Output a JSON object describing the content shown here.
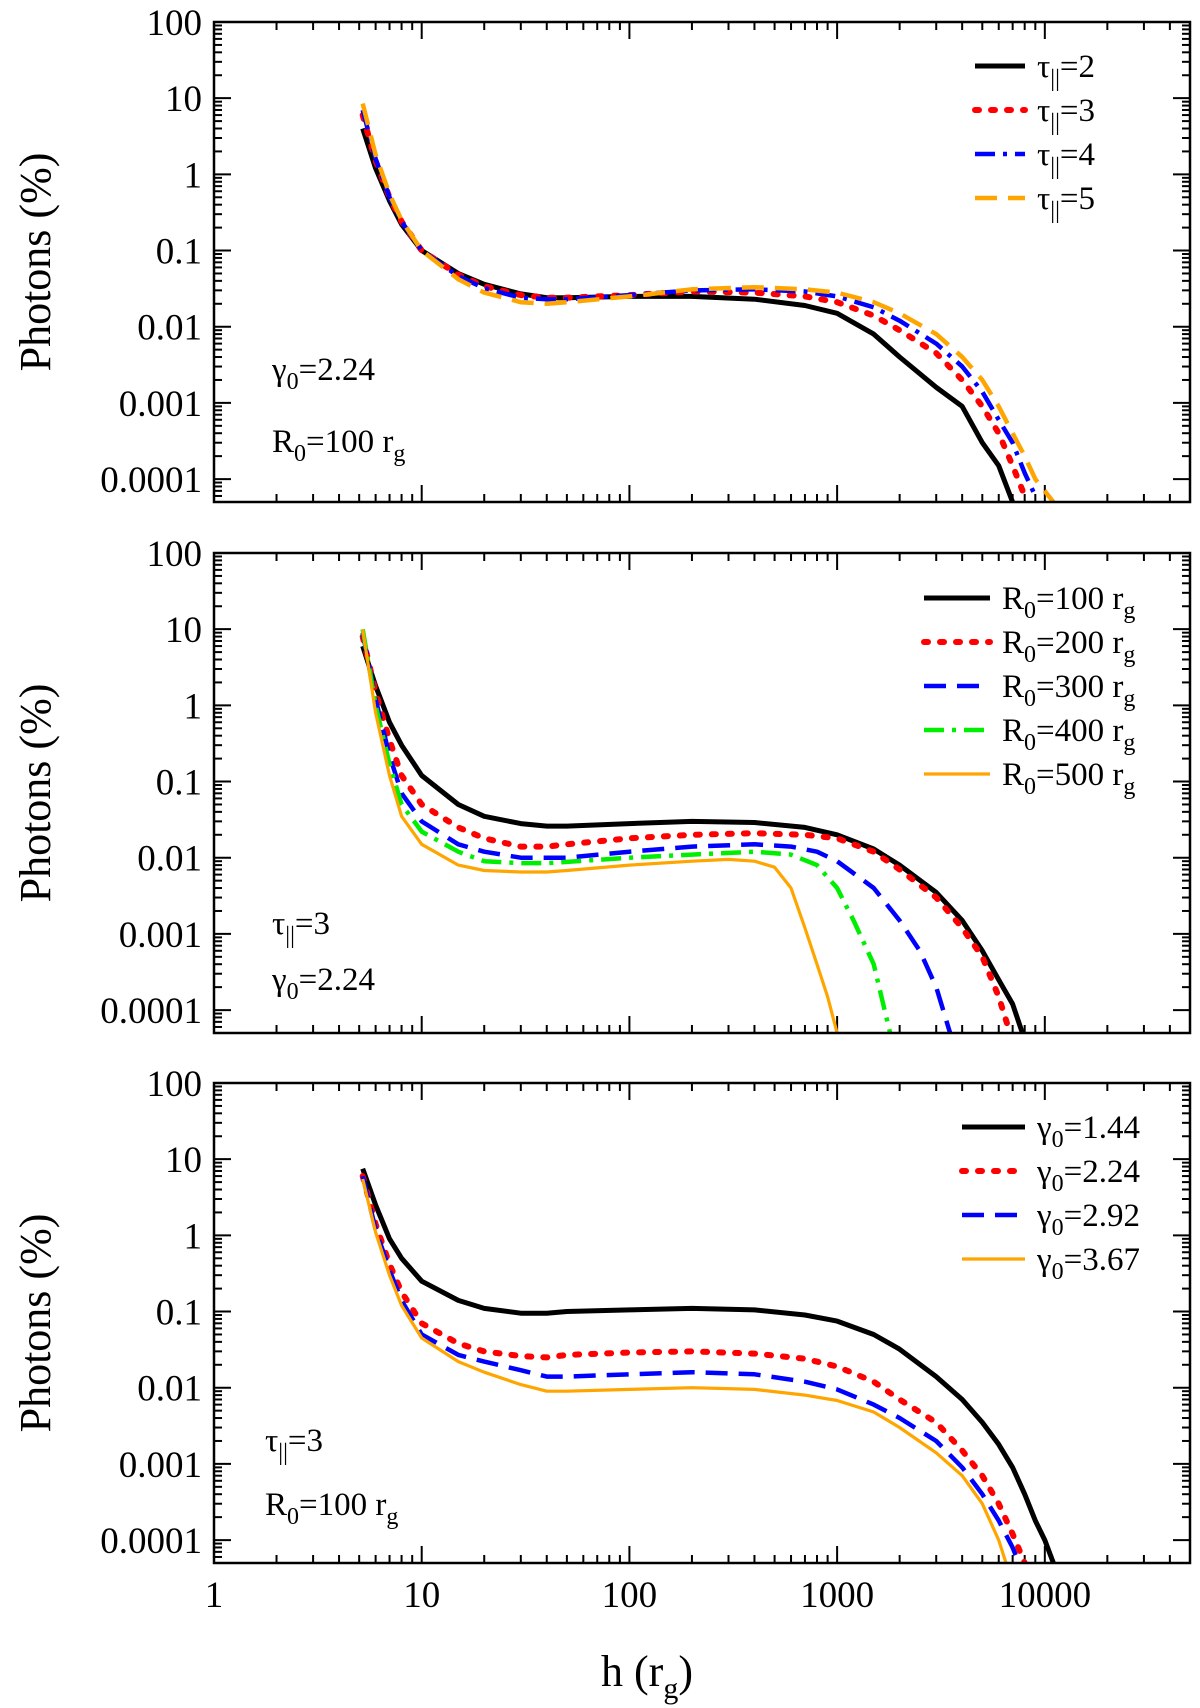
{
  "chart_data": [
    {
      "type": "line",
      "scale": "log-log",
      "xlabel": "h (r_g)",
      "ylabel": "Photons (%)",
      "xlim": [
        1,
        50000
      ],
      "ylim": [
        5e-05,
        100
      ],
      "x_ticks": [
        "1",
        "10",
        "100",
        "1000",
        "10000"
      ],
      "y_ticks": [
        "100",
        "10",
        "1",
        "0.1",
        "0.01",
        "0.001",
        "0.0001"
      ],
      "annotations": [
        "γ0=2.24",
        "R0=100 rg"
      ],
      "series": [
        {
          "name": "τ||=2",
          "color": "#000000",
          "style": "solid",
          "x": [
            5.2,
            6,
            7,
            8,
            10,
            15,
            20,
            30,
            40,
            50,
            100,
            200,
            400,
            700,
            1000,
            1500,
            2000,
            3000,
            4000,
            5000,
            6000,
            7000
          ],
          "y": [
            4,
            1.2,
            0.45,
            0.22,
            0.1,
            0.05,
            0.036,
            0.027,
            0.024,
            0.024,
            0.025,
            0.025,
            0.023,
            0.019,
            0.015,
            0.008,
            0.004,
            0.0016,
            0.0009,
            0.0003,
            0.00015,
            5e-05
          ]
        },
        {
          "name": "τ||=3",
          "color": "#ff0000",
          "style": "dotted",
          "x": [
            5.2,
            6,
            7,
            8,
            10,
            15,
            20,
            30,
            40,
            50,
            100,
            200,
            400,
            700,
            1000,
            1500,
            2000,
            3000,
            4000,
            5000,
            6000,
            7000,
            8000
          ],
          "y": [
            6,
            1.5,
            0.5,
            0.24,
            0.1,
            0.048,
            0.034,
            0.026,
            0.024,
            0.024,
            0.026,
            0.029,
            0.028,
            0.025,
            0.021,
            0.014,
            0.009,
            0.0045,
            0.002,
            0.0009,
            0.0004,
            0.00015,
            6e-05
          ]
        },
        {
          "name": "τ||=4",
          "color": "#0000ff",
          "style": "dash-dot",
          "x": [
            5.2,
            6,
            7,
            8,
            10,
            15,
            20,
            30,
            40,
            50,
            100,
            200,
            400,
            700,
            1000,
            1500,
            2000,
            3000,
            4000,
            5000,
            6000,
            7000,
            8000,
            9000
          ],
          "y": [
            7,
            1.6,
            0.5,
            0.24,
            0.1,
            0.046,
            0.032,
            0.024,
            0.023,
            0.023,
            0.026,
            0.03,
            0.031,
            0.029,
            0.025,
            0.018,
            0.012,
            0.006,
            0.003,
            0.0014,
            0.0006,
            0.0003,
            0.00012,
            6e-05
          ]
        },
        {
          "name": "τ||=5",
          "color": "#ffa500",
          "style": "dashed",
          "x": [
            5.2,
            6,
            7,
            8,
            10,
            15,
            20,
            30,
            40,
            50,
            100,
            200,
            400,
            700,
            1000,
            1500,
            2000,
            3000,
            4000,
            5000,
            6000,
            7000,
            8000,
            9000,
            11000
          ],
          "y": [
            8.5,
            1.8,
            0.55,
            0.25,
            0.1,
            0.042,
            0.028,
            0.021,
            0.02,
            0.021,
            0.025,
            0.031,
            0.033,
            0.031,
            0.028,
            0.021,
            0.015,
            0.008,
            0.004,
            0.002,
            0.0009,
            0.0004,
            0.0002,
            0.0001,
            5e-05
          ]
        }
      ]
    },
    {
      "type": "line",
      "scale": "log-log",
      "xlabel": "h (r_g)",
      "ylabel": "Photons (%)",
      "xlim": [
        1,
        50000
      ],
      "ylim": [
        5e-05,
        100
      ],
      "x_ticks": [
        "1",
        "10",
        "100",
        "1000",
        "10000"
      ],
      "y_ticks": [
        "100",
        "10",
        "1",
        "0.1",
        "0.01",
        "0.001",
        "0.0001"
      ],
      "annotations": [
        "τ||=3",
        "γ0=2.24"
      ],
      "series": [
        {
          "name": "R0=100 rg",
          "color": "#000000",
          "style": "solid",
          "x": [
            5.2,
            6,
            7,
            8,
            10,
            15,
            20,
            30,
            40,
            50,
            100,
            200,
            400,
            700,
            1000,
            1500,
            2000,
            3000,
            4000,
            5000,
            6000,
            7000,
            7800
          ],
          "y": [
            6,
            1.8,
            0.6,
            0.3,
            0.12,
            0.05,
            0.035,
            0.028,
            0.026,
            0.026,
            0.028,
            0.03,
            0.029,
            0.025,
            0.02,
            0.013,
            0.008,
            0.0035,
            0.0015,
            0.0006,
            0.00025,
            0.00012,
            5e-05
          ]
        },
        {
          "name": "R0=200 rg",
          "color": "#ff0000",
          "style": "dotted",
          "x": [
            5.2,
            6,
            7,
            8,
            10,
            15,
            20,
            30,
            40,
            50,
            100,
            200,
            400,
            700,
            1000,
            1500,
            2000,
            3000,
            4000,
            5000,
            6000,
            6800
          ],
          "y": [
            8,
            1.5,
            0.35,
            0.12,
            0.05,
            0.025,
            0.018,
            0.014,
            0.014,
            0.015,
            0.018,
            0.02,
            0.021,
            0.02,
            0.018,
            0.012,
            0.007,
            0.003,
            0.0012,
            0.0005,
            0.00015,
            5e-05
          ]
        },
        {
          "name": "R0=300 rg",
          "color": "#0000ff",
          "style": "dashed",
          "x": [
            5.2,
            6,
            7,
            8,
            10,
            15,
            20,
            30,
            40,
            50,
            100,
            200,
            400,
            600,
            800,
            1000,
            1500,
            2000,
            2500,
            3000,
            3500
          ],
          "y": [
            9,
            1.2,
            0.22,
            0.07,
            0.03,
            0.015,
            0.012,
            0.01,
            0.01,
            0.01,
            0.012,
            0.014,
            0.015,
            0.014,
            0.012,
            0.009,
            0.004,
            0.0015,
            0.0006,
            0.0002,
            5e-05
          ]
        },
        {
          "name": "R0=400 rg",
          "color": "#00ee00",
          "style": "dash-dot",
          "x": [
            5.2,
            6,
            7,
            8,
            10,
            15,
            20,
            30,
            40,
            50,
            100,
            200,
            400,
            600,
            800,
            1000,
            1200,
            1500,
            1800
          ],
          "y": [
            10,
            1,
            0.17,
            0.05,
            0.022,
            0.012,
            0.009,
            0.0085,
            0.0085,
            0.0088,
            0.01,
            0.011,
            0.012,
            0.011,
            0.008,
            0.004,
            0.0015,
            0.0004,
            5e-05
          ]
        },
        {
          "name": "R0=500 rg",
          "color": "#ffa500",
          "style": "solid-thin",
          "x": [
            5.2,
            6,
            7,
            8,
            10,
            15,
            20,
            30,
            40,
            50,
            100,
            200,
            300,
            400,
            500,
            600,
            700,
            800,
            900,
            1000
          ],
          "y": [
            10,
            0.8,
            0.12,
            0.035,
            0.015,
            0.008,
            0.0068,
            0.0065,
            0.0065,
            0.0068,
            0.008,
            0.009,
            0.0095,
            0.009,
            0.0075,
            0.004,
            0.0012,
            0.0004,
            0.00015,
            5e-05
          ]
        }
      ]
    },
    {
      "type": "line",
      "scale": "log-log",
      "xlabel": "h (r_g)",
      "ylabel": "Photons (%)",
      "xlim": [
        1,
        50000
      ],
      "ylim": [
        5e-05,
        100
      ],
      "x_ticks": [
        "1",
        "10",
        "100",
        "1000",
        "10000"
      ],
      "y_ticks": [
        "100",
        "10",
        "1",
        "0.1",
        "0.01",
        "0.001",
        "0.0001"
      ],
      "annotations": [
        "τ||=3",
        "R0=100 rg"
      ],
      "series": [
        {
          "name": "γ0=1.44",
          "color": "#000000",
          "style": "solid",
          "x": [
            5.2,
            6,
            7,
            8,
            10,
            15,
            20,
            30,
            40,
            50,
            100,
            200,
            400,
            700,
            1000,
            1500,
            2000,
            3000,
            4000,
            5000,
            6000,
            7000,
            8000,
            9000,
            10000,
            11000
          ],
          "y": [
            7.5,
            2.5,
            0.9,
            0.5,
            0.25,
            0.14,
            0.11,
            0.095,
            0.095,
            0.1,
            0.105,
            0.11,
            0.105,
            0.09,
            0.075,
            0.05,
            0.032,
            0.014,
            0.007,
            0.0035,
            0.0018,
            0.0009,
            0.0004,
            0.00018,
            0.0001,
            5e-05
          ]
        },
        {
          "name": "γ0=2.24",
          "color": "#ff0000",
          "style": "dotted",
          "x": [
            5.2,
            6,
            7,
            8,
            10,
            15,
            20,
            30,
            40,
            50,
            100,
            200,
            400,
            700,
            1000,
            1500,
            2000,
            3000,
            4000,
            5000,
            6000,
            7000,
            8000
          ],
          "y": [
            6,
            1.4,
            0.42,
            0.18,
            0.07,
            0.038,
            0.03,
            0.026,
            0.025,
            0.027,
            0.029,
            0.03,
            0.028,
            0.024,
            0.019,
            0.012,
            0.007,
            0.0035,
            0.0015,
            0.0007,
            0.0003,
            0.00012,
            5e-05
          ]
        },
        {
          "name": "γ0=2.92",
          "color": "#0000ff",
          "style": "dashed",
          "x": [
            5.2,
            6,
            7,
            8,
            10,
            15,
            20,
            30,
            40,
            50,
            100,
            200,
            400,
            700,
            1000,
            1500,
            2000,
            3000,
            4000,
            5000,
            6000,
            7000,
            7500
          ],
          "y": [
            6,
            1.2,
            0.35,
            0.14,
            0.05,
            0.027,
            0.022,
            0.017,
            0.014,
            0.014,
            0.015,
            0.016,
            0.015,
            0.012,
            0.0095,
            0.006,
            0.004,
            0.002,
            0.0009,
            0.0004,
            0.00018,
            8e-05,
            5e-05
          ]
        },
        {
          "name": "γ0=3.67",
          "color": "#ffa500",
          "style": "solid-thin",
          "x": [
            5.2,
            6,
            7,
            8,
            10,
            15,
            20,
            30,
            40,
            50,
            100,
            200,
            400,
            700,
            1000,
            1500,
            2000,
            3000,
            4000,
            5000,
            6000,
            6500
          ],
          "y": [
            5.5,
            1.1,
            0.3,
            0.12,
            0.045,
            0.022,
            0.016,
            0.011,
            0.009,
            0.009,
            0.0095,
            0.01,
            0.0095,
            0.008,
            0.0068,
            0.0048,
            0.003,
            0.0014,
            0.0007,
            0.0003,
            0.0001,
            5e-05
          ]
        }
      ]
    }
  ]
}
